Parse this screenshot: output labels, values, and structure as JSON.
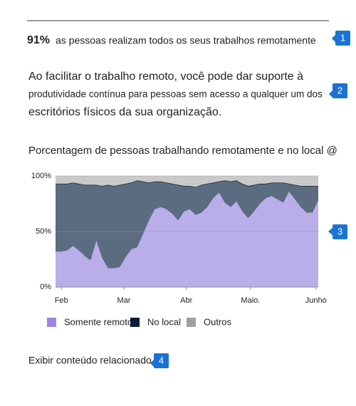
{
  "stat": {
    "value": "91%",
    "text": "as pessoas realizam todos os seus trabalhos remotamente"
  },
  "paragraph": [
    "Ao facilitar o trabalho remoto, você pode dar suporte à",
    "produtividade contínua para pessoas sem acesso a qualquer um dos",
    "escritórios físicos da sua organização."
  ],
  "link": "Exibir conteúdo relacionado",
  "callouts": [
    "1",
    "2",
    "3",
    "4"
  ],
  "chart_data": {
    "type": "stacked_area",
    "title": "Porcentagem de pessoas trabalhando remotamente e no local @",
    "x": [
      0,
      1,
      2,
      3,
      4,
      5,
      6,
      7,
      8,
      9,
      10,
      11,
      12,
      13,
      14,
      15,
      16,
      17,
      18,
      19,
      20,
      21,
      22,
      23,
      24,
      25,
      26,
      27,
      28,
      29,
      30,
      31,
      32,
      33,
      34,
      35,
      36,
      37,
      38,
      39,
      40,
      41,
      42,
      43,
      44,
      45
    ],
    "series": [
      {
        "name": "Somente remoto",
        "color": "#b9aeea",
        "legend_color": "#9b86e0",
        "values": [
          32,
          32,
          33,
          37,
          33,
          28,
          24,
          42,
          26,
          17,
          17,
          18,
          27,
          34,
          36,
          48,
          60,
          70,
          72,
          70,
          66,
          60,
          68,
          70,
          65,
          67,
          72,
          80,
          85,
          76,
          72,
          77,
          68,
          62,
          68,
          75,
          80,
          82,
          79,
          76,
          86,
          79,
          72,
          67,
          67,
          78
        ]
      },
      {
        "name": "No local",
        "color": "#5b6b80",
        "legend_color": "#0d1c3b",
        "values": [
          61,
          61,
          60,
          57,
          60,
          64,
          68,
          50,
          65,
          75,
          74,
          74,
          66,
          60,
          60,
          47,
          34,
          25,
          23,
          24,
          27,
          32,
          23,
          21,
          25,
          25,
          21,
          14,
          10,
          20,
          23,
          19,
          25,
          29,
          24,
          18,
          13,
          12,
          15,
          18,
          7,
          13,
          19,
          24,
          24,
          13
        ]
      },
      {
        "name": "Outros",
        "color": "#c9c9c9",
        "legend_color": "#a0a0a0",
        "values": [
          7,
          7,
          7,
          6,
          7,
          8,
          8,
          8,
          9,
          8,
          9,
          8,
          7,
          6,
          4,
          5,
          6,
          5,
          5,
          6,
          7,
          8,
          9,
          9,
          10,
          8,
          7,
          6,
          5,
          4,
          5,
          4,
          7,
          9,
          8,
          7,
          7,
          6,
          6,
          6,
          7,
          8,
          9,
          9,
          9,
          9
        ]
      }
    ],
    "xlim": [
      0,
      45
    ],
    "xticks": [
      {
        "value": 1,
        "label": "Feb"
      },
      {
        "value": 11.7,
        "label": "Mar"
      },
      {
        "value": 22.4,
        "label": "Abr"
      },
      {
        "value": 33.4,
        "label": "Maio."
      },
      {
        "value": 44.6,
        "label": "Junho"
      }
    ],
    "ylim": [
      0,
      100
    ],
    "yticks": [
      {
        "value": 0,
        "label": "0%"
      },
      {
        "value": 50,
        "label": "50%"
      },
      {
        "value": 100,
        "label": "100%"
      }
    ],
    "grid": true
  }
}
